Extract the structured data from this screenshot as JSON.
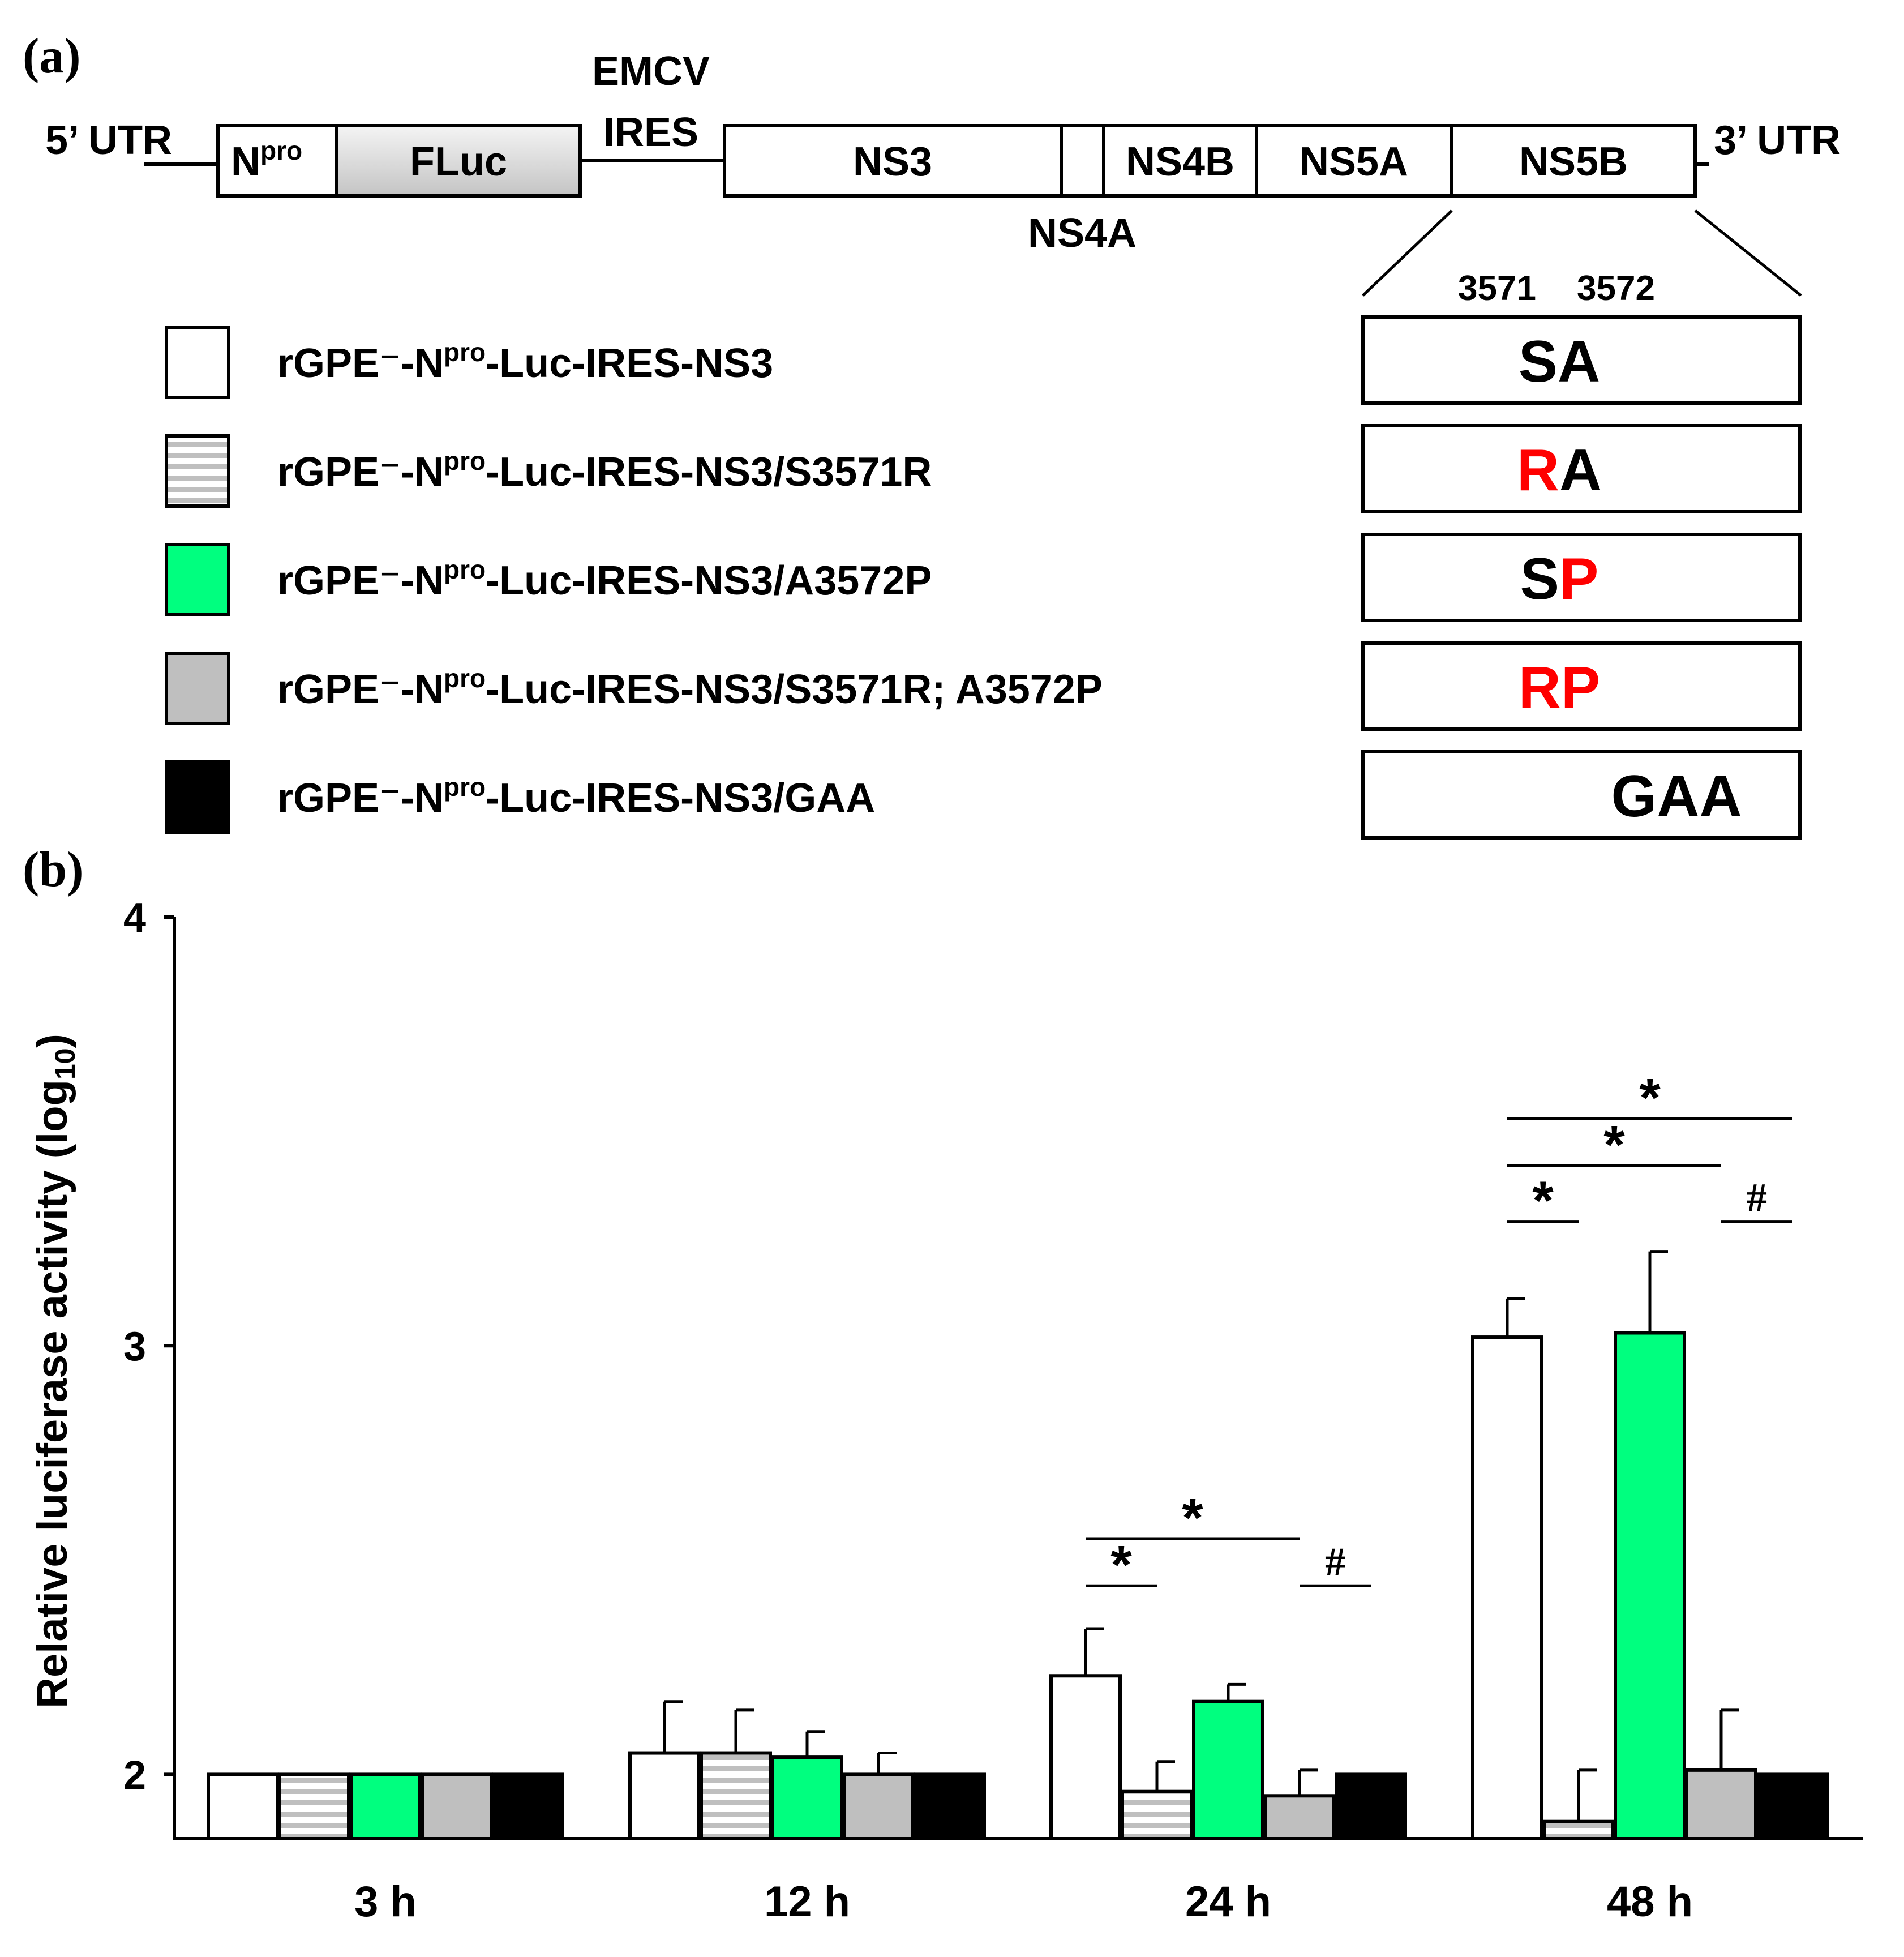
{
  "panel_a": {
    "label": "(a)",
    "five_utr": "5’ UTR",
    "three_utr": "3’ UTR",
    "npro_main": "N",
    "npro_sup": "pro",
    "fluc": "FLuc",
    "emcv": "EMCV",
    "ires": "IRES",
    "ns3": "NS3",
    "ns4a": "NS4A",
    "ns4b": "NS4B",
    "ns5a": "NS5A",
    "ns5b": "NS5B",
    "pos1": "3571",
    "pos2": "3572",
    "construct_prefix": "rGPE⁻-N",
    "construct_sup": "pro",
    "constructs": [
      {
        "suffix": "-Luc-IRES-NS3",
        "pattern": "white",
        "seq_a": "S",
        "seq_b": "A",
        "color_a": "#000000",
        "color_b": "#000000"
      },
      {
        "suffix": "-Luc-IRES-NS3/S3571R",
        "pattern": "striped",
        "seq_a": "R",
        "seq_b": "A",
        "color_a": "#ff0000",
        "color_b": "#000000"
      },
      {
        "suffix": "-Luc-IRES-NS3/A3572P",
        "pattern": "green",
        "seq_a": "S",
        "seq_b": "P",
        "color_a": "#000000",
        "color_b": "#ff0000"
      },
      {
        "suffix": "-Luc-IRES-NS3/S3571R; A3572P",
        "pattern": "gray",
        "seq_a": "R",
        "seq_b": "P",
        "color_a": "#ff0000",
        "color_b": "#ff0000"
      },
      {
        "suffix": "-Luc-IRES-NS3/GAA",
        "pattern": "black",
        "seq_a": "GAA",
        "seq_b": "",
        "color_a": "#000000",
        "color_b": "#000000"
      }
    ]
  },
  "panel_b_label": "(b)",
  "colors": {
    "white": "#ffffff",
    "green": "#00ff7f",
    "gray": "#bfbfbf",
    "black": "#000000",
    "stripe_light": "#ffffff",
    "stripe_dark": "#bfbfbf",
    "red": "#ff0000"
  },
  "chart_data": {
    "type": "bar",
    "ylabel_main": "Relative luciferase activity (log",
    "ylabel_sub": "10",
    "ylabel_close": ")",
    "yticks": [
      "2",
      "3",
      "4"
    ],
    "ylim": [
      1.85,
      4.0
    ],
    "categories": [
      "3 h",
      "12 h",
      "24 h",
      "48 h"
    ],
    "series": [
      {
        "name": "rGPE⁻-Npro-Luc-IRES-NS3",
        "pattern": "white",
        "values": [
          2.0,
          2.05,
          2.23,
          3.02
        ],
        "errors": [
          0,
          0.12,
          0.11,
          0.09
        ]
      },
      {
        "name": "rGPE⁻-Npro-Luc-IRES-NS3/S3571R",
        "pattern": "striped",
        "values": [
          2.0,
          2.05,
          1.96,
          1.89
        ],
        "errors": [
          0,
          0.1,
          0.07,
          0.12
        ]
      },
      {
        "name": "rGPE⁻-Npro-Luc-IRES-NS3/A3572P",
        "pattern": "green",
        "values": [
          2.0,
          2.04,
          2.17,
          3.03
        ],
        "errors": [
          0,
          0.06,
          0.04,
          0.19
        ]
      },
      {
        "name": "rGPE⁻-Npro-Luc-IRES-NS3/S3571R; A3572P",
        "pattern": "gray",
        "values": [
          2.0,
          2.0,
          1.95,
          2.01
        ],
        "errors": [
          0,
          0.05,
          0.06,
          0.14
        ]
      },
      {
        "name": "rGPE⁻-Npro-Luc-IRES-NS3/GAA",
        "pattern": "black",
        "values": [
          2.0,
          2.0,
          2.0,
          2.0
        ],
        "errors": [
          0,
          0,
          0,
          0
        ]
      }
    ],
    "significance": [
      {
        "category": 2,
        "from": 0,
        "to": 1,
        "y": 2.44,
        "symbol": "*"
      },
      {
        "category": 2,
        "from": 0,
        "to": 3,
        "y": 2.55,
        "symbol": "*"
      },
      {
        "category": 2,
        "from": 3,
        "to": 4,
        "y": 2.44,
        "symbol": "#"
      },
      {
        "category": 3,
        "from": 0,
        "to": 1,
        "y": 3.29,
        "symbol": "*"
      },
      {
        "category": 3,
        "from": 0,
        "to": 3,
        "y": 3.42,
        "symbol": "*"
      },
      {
        "category": 3,
        "from": 0,
        "to": 4,
        "y": 3.53,
        "symbol": "*"
      },
      {
        "category": 3,
        "from": 3,
        "to": 4,
        "y": 3.29,
        "symbol": "#"
      }
    ]
  }
}
